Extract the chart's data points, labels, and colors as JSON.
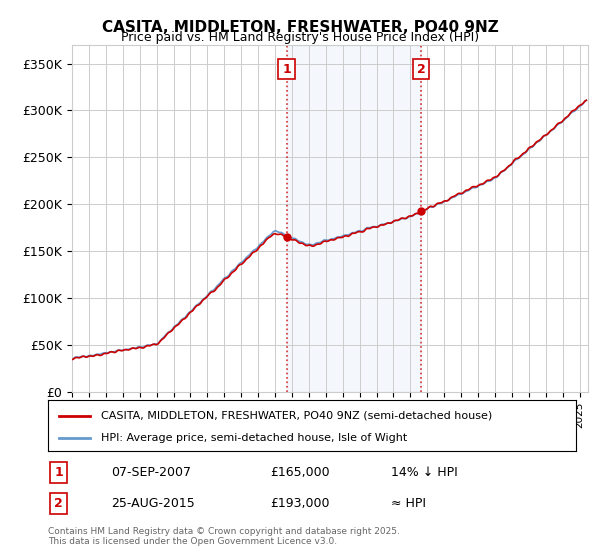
{
  "title": "CASITA, MIDDLETON, FRESHWATER, PO40 9NZ",
  "subtitle": "Price paid vs. HM Land Registry's House Price Index (HPI)",
  "ylabel_ticks": [
    "£0",
    "£50K",
    "£100K",
    "£150K",
    "£200K",
    "£250K",
    "£300K",
    "£350K"
  ],
  "ytick_values": [
    0,
    50000,
    100000,
    150000,
    200000,
    250000,
    300000,
    350000
  ],
  "ylim": [
    0,
    370000
  ],
  "xlim_start": 1995,
  "xlim_end": 2025.5,
  "marker1_x": 2007.68,
  "marker1_y": 165000,
  "marker1_label": "1",
  "marker1_date": "07-SEP-2007",
  "marker1_price": "£165,000",
  "marker1_note": "14% ↓ HPI",
  "marker2_x": 2015.65,
  "marker2_y": 193000,
  "marker2_label": "2",
  "marker2_date": "25-AUG-2015",
  "marker2_price": "£193,000",
  "marker2_note": "≈ HPI",
  "red_color": "#cc0000",
  "blue_color": "#6699cc",
  "vline_color": "#cc0000",
  "grid_color": "#cccccc",
  "bg_color": "#ffffff",
  "legend_label_red": "CASITA, MIDDLETON, FRESHWATER, PO40 9NZ (semi-detached house)",
  "legend_label_blue": "HPI: Average price, semi-detached house, Isle of Wight",
  "footnote": "Contains HM Land Registry data © Crown copyright and database right 2025.\nThis data is licensed under the Open Government Licence v3.0.",
  "table_rows": [
    {
      "num": "1",
      "date": "07-SEP-2007",
      "price": "£165,000",
      "note": "14% ↓ HPI"
    },
    {
      "num": "2",
      "date": "25-AUG-2015",
      "price": "£193,000",
      "note": "≈ HPI"
    }
  ]
}
